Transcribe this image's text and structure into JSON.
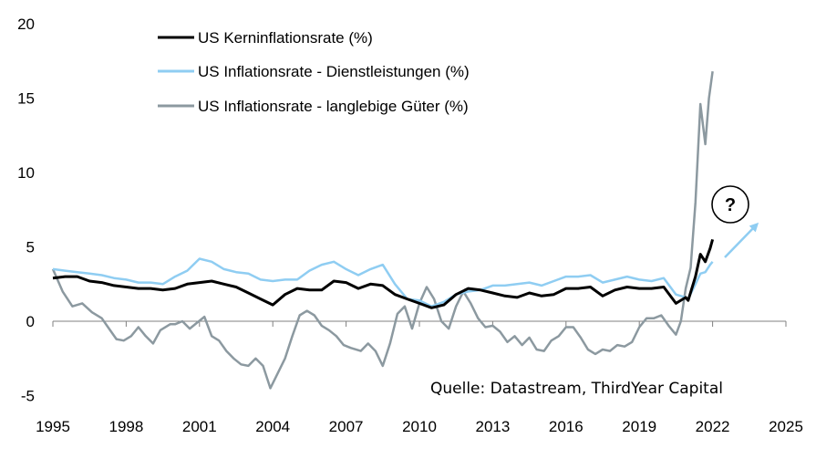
{
  "chart_data": {
    "type": "line",
    "x_range": [
      1995,
      2025
    ],
    "ylim": [
      -5,
      20
    ],
    "x_ticks": [
      "1995",
      "1998",
      "2001",
      "2004",
      "2007",
      "2010",
      "2013",
      "2016",
      "2019",
      "2022",
      "2025"
    ],
    "y_ticks": [
      "-5",
      "0",
      "5",
      "10",
      "15",
      "20"
    ],
    "grid": false,
    "legend_position": "top-left",
    "series": [
      {
        "name": "US Kerninflationsrate (%)",
        "color": "#000000",
        "points": [
          [
            1995.0,
            2.9
          ],
          [
            1995.5,
            3.0
          ],
          [
            1996.0,
            3.0
          ],
          [
            1996.5,
            2.7
          ],
          [
            1997.0,
            2.6
          ],
          [
            1997.5,
            2.4
          ],
          [
            1998.0,
            2.3
          ],
          [
            1998.5,
            2.2
          ],
          [
            1999.0,
            2.2
          ],
          [
            1999.5,
            2.1
          ],
          [
            2000.0,
            2.2
          ],
          [
            2000.5,
            2.5
          ],
          [
            2001.0,
            2.6
          ],
          [
            2001.5,
            2.7
          ],
          [
            2002.0,
            2.5
          ],
          [
            2002.5,
            2.3
          ],
          [
            2003.0,
            1.9
          ],
          [
            2003.5,
            1.5
          ],
          [
            2004.0,
            1.1
          ],
          [
            2004.5,
            1.8
          ],
          [
            2005.0,
            2.2
          ],
          [
            2005.5,
            2.1
          ],
          [
            2006.0,
            2.1
          ],
          [
            2006.5,
            2.7
          ],
          [
            2007.0,
            2.6
          ],
          [
            2007.5,
            2.2
          ],
          [
            2008.0,
            2.5
          ],
          [
            2008.5,
            2.4
          ],
          [
            2009.0,
            1.8
          ],
          [
            2009.5,
            1.5
          ],
          [
            2010.0,
            1.2
          ],
          [
            2010.5,
            0.9
          ],
          [
            2011.0,
            1.1
          ],
          [
            2011.5,
            1.8
          ],
          [
            2012.0,
            2.2
          ],
          [
            2012.5,
            2.1
          ],
          [
            2013.0,
            1.9
          ],
          [
            2013.5,
            1.7
          ],
          [
            2014.0,
            1.6
          ],
          [
            2014.5,
            1.9
          ],
          [
            2015.0,
            1.7
          ],
          [
            2015.5,
            1.8
          ],
          [
            2016.0,
            2.2
          ],
          [
            2016.5,
            2.2
          ],
          [
            2017.0,
            2.3
          ],
          [
            2017.5,
            1.7
          ],
          [
            2018.0,
            2.1
          ],
          [
            2018.5,
            2.3
          ],
          [
            2019.0,
            2.2
          ],
          [
            2019.5,
            2.2
          ],
          [
            2020.0,
            2.3
          ],
          [
            2020.5,
            1.2
          ],
          [
            2020.9,
            1.6
          ],
          [
            2021.0,
            1.4
          ],
          [
            2021.3,
            3.0
          ],
          [
            2021.5,
            4.5
          ],
          [
            2021.7,
            4.0
          ],
          [
            2021.9,
            4.9
          ],
          [
            2022.0,
            5.5
          ]
        ]
      },
      {
        "name": "US Inflationsrate - Dienstleistungen (%)",
        "color": "#8fcdf2",
        "points": [
          [
            1995.0,
            3.5
          ],
          [
            1995.5,
            3.4
          ],
          [
            1996.0,
            3.3
          ],
          [
            1996.5,
            3.2
          ],
          [
            1997.0,
            3.1
          ],
          [
            1997.5,
            2.9
          ],
          [
            1998.0,
            2.8
          ],
          [
            1998.5,
            2.6
          ],
          [
            1999.0,
            2.6
          ],
          [
            1999.5,
            2.5
          ],
          [
            2000.0,
            3.0
          ],
          [
            2000.5,
            3.4
          ],
          [
            2001.0,
            4.2
          ],
          [
            2001.5,
            4.0
          ],
          [
            2002.0,
            3.5
          ],
          [
            2002.5,
            3.3
          ],
          [
            2003.0,
            3.2
          ],
          [
            2003.5,
            2.8
          ],
          [
            2004.0,
            2.7
          ],
          [
            2004.5,
            2.8
          ],
          [
            2005.0,
            2.8
          ],
          [
            2005.5,
            3.4
          ],
          [
            2006.0,
            3.8
          ],
          [
            2006.5,
            4.0
          ],
          [
            2007.0,
            3.5
          ],
          [
            2007.5,
            3.1
          ],
          [
            2008.0,
            3.5
          ],
          [
            2008.5,
            3.8
          ],
          [
            2009.0,
            2.5
          ],
          [
            2009.5,
            1.5
          ],
          [
            2010.0,
            1.4
          ],
          [
            2010.5,
            1.0
          ],
          [
            2011.0,
            1.3
          ],
          [
            2011.5,
            1.8
          ],
          [
            2012.0,
            2.0
          ],
          [
            2012.5,
            2.1
          ],
          [
            2013.0,
            2.4
          ],
          [
            2013.5,
            2.4
          ],
          [
            2014.0,
            2.5
          ],
          [
            2014.5,
            2.6
          ],
          [
            2015.0,
            2.4
          ],
          [
            2015.5,
            2.7
          ],
          [
            2016.0,
            3.0
          ],
          [
            2016.5,
            3.0
          ],
          [
            2017.0,
            3.1
          ],
          [
            2017.5,
            2.6
          ],
          [
            2018.0,
            2.8
          ],
          [
            2018.5,
            3.0
          ],
          [
            2019.0,
            2.8
          ],
          [
            2019.5,
            2.7
          ],
          [
            2020.0,
            2.9
          ],
          [
            2020.5,
            1.8
          ],
          [
            2020.9,
            1.6
          ],
          [
            2021.0,
            1.5
          ],
          [
            2021.3,
            2.5
          ],
          [
            2021.5,
            3.2
          ],
          [
            2021.7,
            3.3
          ],
          [
            2021.9,
            3.8
          ],
          [
            2022.0,
            4.0
          ]
        ]
      },
      {
        "name": "US Inflationsrate - langlebige Güter (%)",
        "color": "#8c99a0",
        "points": [
          [
            1995.0,
            3.5
          ],
          [
            1995.4,
            2.0
          ],
          [
            1995.8,
            1.0
          ],
          [
            1996.2,
            1.2
          ],
          [
            1996.6,
            0.6
          ],
          [
            1997.0,
            0.2
          ],
          [
            1997.3,
            -0.5
          ],
          [
            1997.6,
            -1.2
          ],
          [
            1997.9,
            -1.3
          ],
          [
            1998.2,
            -1.0
          ],
          [
            1998.5,
            -0.4
          ],
          [
            1998.8,
            -1.0
          ],
          [
            1999.1,
            -1.5
          ],
          [
            1999.4,
            -0.6
          ],
          [
            1999.8,
            -0.2
          ],
          [
            2000.0,
            -0.2
          ],
          [
            2000.3,
            0.0
          ],
          [
            2000.6,
            -0.5
          ],
          [
            2000.9,
            -0.1
          ],
          [
            2001.2,
            0.3
          ],
          [
            2001.5,
            -1.0
          ],
          [
            2001.8,
            -1.3
          ],
          [
            2002.1,
            -2.0
          ],
          [
            2002.4,
            -2.5
          ],
          [
            2002.7,
            -2.9
          ],
          [
            2003.0,
            -3.0
          ],
          [
            2003.3,
            -2.5
          ],
          [
            2003.6,
            -3.0
          ],
          [
            2003.9,
            -4.5
          ],
          [
            2004.2,
            -3.5
          ],
          [
            2004.5,
            -2.5
          ],
          [
            2004.8,
            -1.0
          ],
          [
            2005.1,
            0.4
          ],
          [
            2005.4,
            0.7
          ],
          [
            2005.7,
            0.4
          ],
          [
            2006.0,
            -0.3
          ],
          [
            2006.3,
            -0.6
          ],
          [
            2006.6,
            -1.0
          ],
          [
            2006.9,
            -1.6
          ],
          [
            2007.2,
            -1.8
          ],
          [
            2007.6,
            -2.0
          ],
          [
            2007.9,
            -1.5
          ],
          [
            2008.2,
            -2.0
          ],
          [
            2008.5,
            -3.0
          ],
          [
            2008.8,
            -1.5
          ],
          [
            2009.1,
            0.5
          ],
          [
            2009.4,
            1.0
          ],
          [
            2009.7,
            -0.5
          ],
          [
            2010.0,
            1.2
          ],
          [
            2010.3,
            2.3
          ],
          [
            2010.6,
            1.5
          ],
          [
            2010.9,
            0.0
          ],
          [
            2011.2,
            -0.5
          ],
          [
            2011.5,
            1.0
          ],
          [
            2011.8,
            2.0
          ],
          [
            2012.1,
            1.2
          ],
          [
            2012.4,
            0.2
          ],
          [
            2012.7,
            -0.4
          ],
          [
            2013.0,
            -0.3
          ],
          [
            2013.3,
            -0.7
          ],
          [
            2013.6,
            -1.4
          ],
          [
            2013.9,
            -1.0
          ],
          [
            2014.2,
            -1.6
          ],
          [
            2014.5,
            -1.1
          ],
          [
            2014.8,
            -1.9
          ],
          [
            2015.1,
            -2.0
          ],
          [
            2015.4,
            -1.3
          ],
          [
            2015.7,
            -1.0
          ],
          [
            2016.0,
            -0.4
          ],
          [
            2016.3,
            -0.4
          ],
          [
            2016.6,
            -1.1
          ],
          [
            2016.9,
            -1.9
          ],
          [
            2017.2,
            -2.2
          ],
          [
            2017.5,
            -1.9
          ],
          [
            2017.8,
            -2.0
          ],
          [
            2018.1,
            -1.6
          ],
          [
            2018.4,
            -1.7
          ],
          [
            2018.7,
            -1.4
          ],
          [
            2019.0,
            -0.4
          ],
          [
            2019.3,
            0.2
          ],
          [
            2019.6,
            0.2
          ],
          [
            2019.9,
            0.4
          ],
          [
            2020.2,
            -0.3
          ],
          [
            2020.5,
            -0.9
          ],
          [
            2020.7,
            0.0
          ],
          [
            2020.9,
            2.2
          ],
          [
            2021.1,
            3.6
          ],
          [
            2021.3,
            8.0
          ],
          [
            2021.5,
            14.6
          ],
          [
            2021.7,
            11.9
          ],
          [
            2021.85,
            15.0
          ],
          [
            2022.0,
            16.8
          ]
        ]
      }
    ],
    "annotations": {
      "question_mark": "?",
      "source": "Quelle: Datastream, ThirdYear Capital"
    }
  }
}
